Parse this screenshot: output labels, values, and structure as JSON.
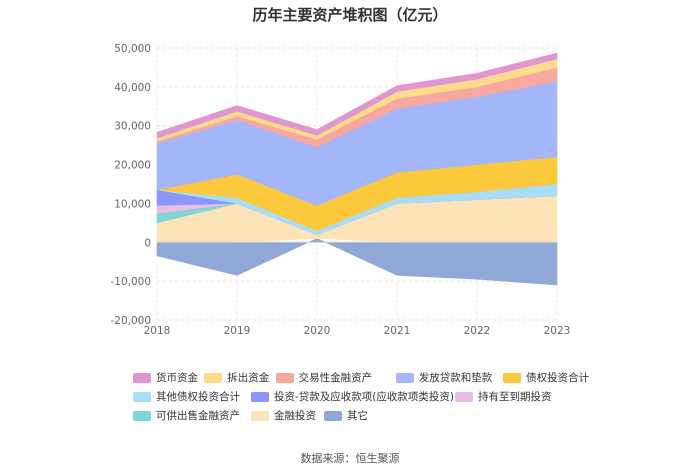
{
  "chart_data": {
    "type": "area",
    "title": "历年主要资产堆积图（亿元）",
    "categories": [
      "2018",
      "2019",
      "2020",
      "2021",
      "2022",
      "2023"
    ],
    "ylim": [
      -20000,
      50000
    ],
    "yticks": [
      "50,000",
      "40,000",
      "30,000",
      "20,000",
      "10,000",
      "0",
      "-10,000",
      "-20,000"
    ],
    "series": [
      {
        "name": "货币资金",
        "color": "#e096d0",
        "values": [
          1500,
          1500,
          1500,
          1500,
          1500,
          1500
        ]
      },
      {
        "name": "拆出资金",
        "color": "#fcdc8c",
        "values": [
          800,
          1200,
          1000,
          1800,
          2000,
          2200
        ]
      },
      {
        "name": "交易性金融资产",
        "color": "#f9a8a0",
        "values": [
          500,
          1000,
          2000,
          2500,
          2500,
          3500
        ]
      },
      {
        "name": "发放贷款和垫款",
        "color": "#a4b7fa",
        "values": [
          12000,
          14000,
          15000,
          16500,
          17500,
          19500
        ]
      },
      {
        "name": "债权投资合计",
        "color": "#fcc83c",
        "values": [
          0,
          6000,
          6500,
          6500,
          7000,
          7000
        ]
      },
      {
        "name": "其他债权投资合计",
        "color": "#a8ddf8",
        "values": [
          0,
          1500,
          1000,
          1500,
          2000,
          3000
        ]
      },
      {
        "name": "投资-贷款及应收款项(应收款项类投资)",
        "color": "#8c96fa",
        "values": [
          4000,
          0,
          0,
          0,
          0,
          0
        ]
      },
      {
        "name": "持有至到期投资",
        "color": "#ebbce6",
        "values": [
          2000,
          0,
          0,
          0,
          0,
          0
        ]
      },
      {
        "name": "可供出售金融资产",
        "color": "#7fd6d6",
        "values": [
          2500,
          0,
          0,
          0,
          0,
          0
        ]
      },
      {
        "name": "金融投资",
        "color": "#fde3b8",
        "values": [
          5000,
          10000,
          1000,
          10000,
          11000,
          12000
        ]
      },
      {
        "name": "其它",
        "color": "#8fa8d8",
        "values": [
          -3500,
          -8500,
          1000,
          -8500,
          -9500,
          -11000
        ]
      }
    ],
    "source": "数据来源：恒生聚源"
  }
}
